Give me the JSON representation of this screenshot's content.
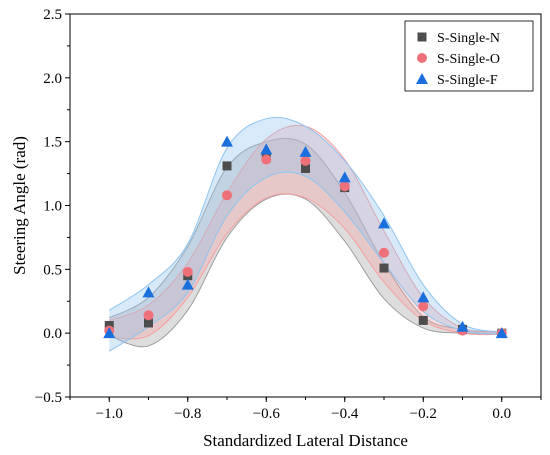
{
  "chart_data": {
    "type": "scatter",
    "xlabel": "Standardized Lateral Distance",
    "ylabel": "Steering Angle (rad)",
    "xlim": [
      -1.1,
      0.1
    ],
    "ylim": [
      -0.5,
      2.5
    ],
    "x_ticks": [
      "-1.0",
      "-0.8",
      "-0.6",
      "-0.4",
      "-0.2",
      "0.0"
    ],
    "y_ticks": [
      "-0.5",
      "0.0",
      "0.5",
      "1.0",
      "1.5",
      "2.0",
      "2.5"
    ],
    "legend_position": "top-right",
    "series": [
      {
        "name": "S-Single-N",
        "marker": "square",
        "color": "#4d4d4d",
        "points": [
          [
            -1.0,
            0.06
          ],
          [
            -0.9,
            0.08
          ],
          [
            -0.8,
            0.45
          ],
          [
            -0.7,
            1.31
          ],
          [
            -0.6,
            1.38
          ],
          [
            -0.5,
            1.29
          ],
          [
            -0.4,
            1.14
          ],
          [
            -0.3,
            0.51
          ],
          [
            -0.2,
            0.1
          ],
          [
            -0.1,
            0.03
          ],
          [
            0.0,
            0.0
          ]
        ],
        "band_upper": [
          [
            -1.0,
            0.12
          ],
          [
            -0.9,
            0.28
          ],
          [
            -0.8,
            0.68
          ],
          [
            -0.7,
            1.3
          ],
          [
            -0.6,
            1.5
          ],
          [
            -0.5,
            1.48
          ],
          [
            -0.4,
            1.1
          ],
          [
            -0.3,
            0.55
          ],
          [
            -0.2,
            0.13
          ],
          [
            -0.1,
            0.03
          ],
          [
            0.0,
            0.01
          ]
        ],
        "band_lower": [
          [
            -1.0,
            -0.02
          ],
          [
            -0.9,
            -0.1
          ],
          [
            -0.8,
            0.18
          ],
          [
            -0.7,
            0.75
          ],
          [
            -0.6,
            1.05
          ],
          [
            -0.5,
            1.05
          ],
          [
            -0.4,
            0.72
          ],
          [
            -0.3,
            0.27
          ],
          [
            -0.2,
            0.04
          ],
          [
            -0.1,
            0.0
          ],
          [
            0.0,
            -0.01
          ]
        ],
        "band_color": "#9e9e9e"
      },
      {
        "name": "S-Single-O",
        "marker": "circle",
        "color": "#f0707a",
        "points": [
          [
            -1.0,
            0.02
          ],
          [
            -0.9,
            0.14
          ],
          [
            -0.8,
            0.48
          ],
          [
            -0.7,
            1.08
          ],
          [
            -0.6,
            1.36
          ],
          [
            -0.5,
            1.35
          ],
          [
            -0.4,
            1.15
          ],
          [
            -0.3,
            0.63
          ],
          [
            -0.2,
            0.21
          ],
          [
            -0.1,
            0.02
          ],
          [
            0.0,
            0.0
          ]
        ],
        "band_upper": [
          [
            -1.0,
            0.1
          ],
          [
            -0.9,
            0.22
          ],
          [
            -0.8,
            0.55
          ],
          [
            -0.7,
            1.1
          ],
          [
            -0.6,
            1.52
          ],
          [
            -0.5,
            1.62
          ],
          [
            -0.4,
            1.36
          ],
          [
            -0.3,
            0.8
          ],
          [
            -0.2,
            0.28
          ],
          [
            -0.1,
            0.04
          ],
          [
            0.0,
            0.01
          ]
        ],
        "band_lower": [
          [
            -1.0,
            -0.03
          ],
          [
            -0.9,
            -0.02
          ],
          [
            -0.8,
            0.28
          ],
          [
            -0.7,
            0.78
          ],
          [
            -0.6,
            1.06
          ],
          [
            -0.5,
            1.06
          ],
          [
            -0.4,
            0.82
          ],
          [
            -0.3,
            0.4
          ],
          [
            -0.2,
            0.1
          ],
          [
            -0.1,
            0.0
          ],
          [
            0.0,
            -0.01
          ]
        ],
        "band_color": "#f5a0a0"
      },
      {
        "name": "S-Single-F",
        "marker": "triangle",
        "color": "#1a6fdc",
        "points": [
          [
            -1.0,
            0.0
          ],
          [
            -0.9,
            0.32
          ],
          [
            -0.8,
            0.38
          ],
          [
            -0.7,
            1.5
          ],
          [
            -0.6,
            1.44
          ],
          [
            -0.5,
            1.42
          ],
          [
            -0.4,
            1.22
          ],
          [
            -0.3,
            0.86
          ],
          [
            -0.2,
            0.28
          ],
          [
            -0.1,
            0.05
          ],
          [
            0.0,
            0.0
          ]
        ],
        "band_upper": [
          [
            -1.0,
            0.18
          ],
          [
            -0.9,
            0.38
          ],
          [
            -0.8,
            0.7
          ],
          [
            -0.7,
            1.45
          ],
          [
            -0.6,
            1.68
          ],
          [
            -0.5,
            1.62
          ],
          [
            -0.4,
            1.35
          ],
          [
            -0.3,
            0.92
          ],
          [
            -0.2,
            0.38
          ],
          [
            -0.1,
            0.07
          ],
          [
            0.0,
            0.01
          ]
        ],
        "band_lower": [
          [
            -1.0,
            -0.14
          ],
          [
            -0.9,
            0.05
          ],
          [
            -0.8,
            0.32
          ],
          [
            -0.7,
            0.92
          ],
          [
            -0.6,
            1.22
          ],
          [
            -0.5,
            1.23
          ],
          [
            -0.4,
            0.95
          ],
          [
            -0.3,
            0.55
          ],
          [
            -0.2,
            0.17
          ],
          [
            -0.1,
            0.02
          ],
          [
            0.0,
            -0.01
          ]
        ],
        "band_color": "#8fc4ef"
      }
    ]
  }
}
